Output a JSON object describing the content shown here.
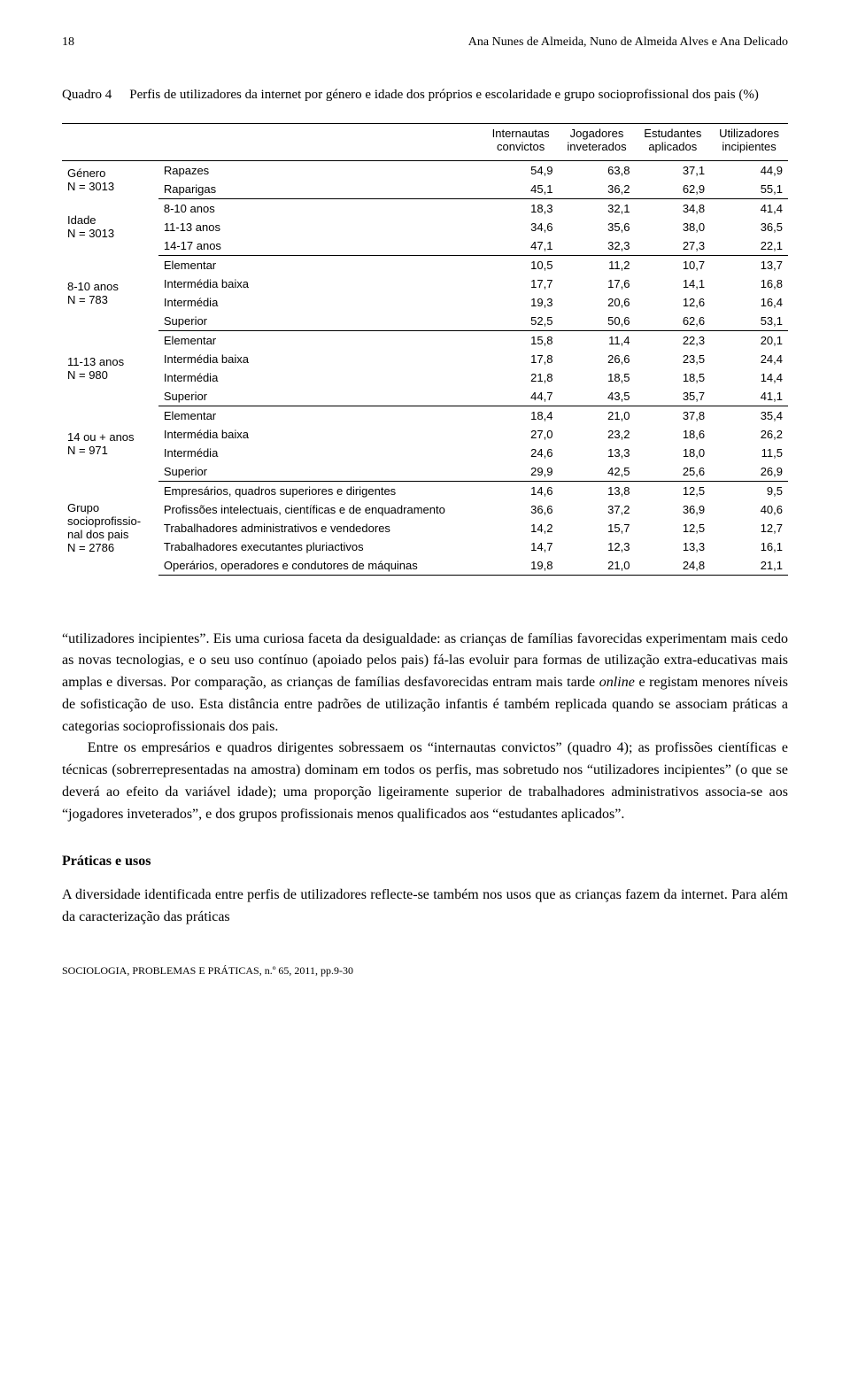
{
  "page_number": "18",
  "authors_line": "Ana Nunes de Almeida, Nuno de Almeida Alves e Ana Delicado",
  "table": {
    "caption_label": "Quadro 4",
    "caption_text": "Perfis de utilizadores da internet por género e idade dos próprios e escolaridade e grupo socioprofissional dos pais (%)",
    "columns": [
      {
        "l1": "Internautas",
        "l2": "convictos"
      },
      {
        "l1": "Jogadores",
        "l2": "inveterados"
      },
      {
        "l1": "Estudantes",
        "l2": "aplicados"
      },
      {
        "l1": "Utilizadores",
        "l2": "incipientes"
      }
    ],
    "groups": [
      {
        "label_lines": [
          "Género",
          "N = 3013"
        ],
        "rows": [
          {
            "label": "Rapazes",
            "vals": [
              "54,9",
              "63,8",
              "37,1",
              "44,9"
            ]
          },
          {
            "label": "Raparigas",
            "vals": [
              "45,1",
              "36,2",
              "62,9",
              "55,1"
            ]
          }
        ]
      },
      {
        "label_lines": [
          "Idade",
          "N = 3013"
        ],
        "rows": [
          {
            "label": "8-10 anos",
            "vals": [
              "18,3",
              "32,1",
              "34,8",
              "41,4"
            ]
          },
          {
            "label": "11-13 anos",
            "vals": [
              "34,6",
              "35,6",
              "38,0",
              "36,5"
            ]
          },
          {
            "label": "14-17 anos",
            "vals": [
              "47,1",
              "32,3",
              "27,3",
              "22,1"
            ]
          }
        ]
      },
      {
        "label_lines": [
          "8-10 anos",
          "N = 783"
        ],
        "rows": [
          {
            "label": "Elementar",
            "vals": [
              "10,5",
              "11,2",
              "10,7",
              "13,7"
            ]
          },
          {
            "label": "Intermédia baixa",
            "vals": [
              "17,7",
              "17,6",
              "14,1",
              "16,8"
            ]
          },
          {
            "label": "Intermédia",
            "vals": [
              "19,3",
              "20,6",
              "12,6",
              "16,4"
            ]
          },
          {
            "label": "Superior",
            "vals": [
              "52,5",
              "50,6",
              "62,6",
              "53,1"
            ]
          }
        ]
      },
      {
        "label_lines": [
          "11-13 anos",
          "N = 980"
        ],
        "rows": [
          {
            "label": "Elementar",
            "vals": [
              "15,8",
              "11,4",
              "22,3",
              "20,1"
            ]
          },
          {
            "label": "Intermédia baixa",
            "vals": [
              "17,8",
              "26,6",
              "23,5",
              "24,4"
            ]
          },
          {
            "label": "Intermédia",
            "vals": [
              "21,8",
              "18,5",
              "18,5",
              "14,4"
            ]
          },
          {
            "label": "Superior",
            "vals": [
              "44,7",
              "43,5",
              "35,7",
              "41,1"
            ]
          }
        ]
      },
      {
        "label_lines": [
          "14 ou + anos",
          "N = 971"
        ],
        "rows": [
          {
            "label": "Elementar",
            "vals": [
              "18,4",
              "21,0",
              "37,8",
              "35,4"
            ]
          },
          {
            "label": "Intermédia baixa",
            "vals": [
              "27,0",
              "23,2",
              "18,6",
              "26,2"
            ]
          },
          {
            "label": "Intermédia",
            "vals": [
              "24,6",
              "13,3",
              "18,0",
              "11,5"
            ]
          },
          {
            "label": "Superior",
            "vals": [
              "29,9",
              "42,5",
              "25,6",
              "26,9"
            ]
          }
        ]
      },
      {
        "label_lines": [
          "Grupo",
          "socioprofissio-",
          "nal dos pais",
          "N = 2786"
        ],
        "rows": [
          {
            "label": "Empresários, quadros superiores e dirigentes",
            "vals": [
              "14,6",
              "13,8",
              "12,5",
              "9,5"
            ]
          },
          {
            "label": "Profissões intelectuais, científicas e de enquadramento",
            "vals": [
              "36,6",
              "37,2",
              "36,9",
              "40,6"
            ]
          },
          {
            "label": "Trabalhadores administrativos e vendedores",
            "vals": [
              "14,2",
              "15,7",
              "12,5",
              "12,7"
            ]
          },
          {
            "label": "Trabalhadores executantes pluriactivos",
            "vals": [
              "14,7",
              "12,3",
              "13,3",
              "16,1"
            ]
          },
          {
            "label": "Operários, operadores e condutores de máquinas",
            "vals": [
              "19,8",
              "21,0",
              "24,8",
              "21,1"
            ]
          }
        ]
      }
    ]
  },
  "body": {
    "p1": "“utilizadores incipientes”. Eis uma curiosa faceta da desigualdade: as crianças de famílias favorecidas experimentam mais cedo as novas tecnologias, e o seu uso contínuo (apoiado pelos pais) fá-las evoluir para formas de utilização extra-educativas mais amplas e diversas. Por comparação, as crianças de famílias desfavorecidas entram mais tarde ",
    "p1_em": "online",
    "p1_tail": " e registam menores níveis de sofisticação de uso. Esta distância entre padrões de utilização infantis é também replicada quando se associam práticas a categorias socioprofissionais dos pais.",
    "p2": "Entre os empresários e quadros dirigentes sobressaem os “internautas convictos” (quadro 4); as profissões científicas e técnicas (sobrerrepresentadas na amostra) dominam em todos os perfis, mas sobretudo nos “utilizadores incipientes” (o que se deverá ao efeito da variável idade); uma proporção ligeiramente superior de trabalhadores administrativos associa-se aos “jogadores inveterados”, e dos grupos profissionais menos qualificados aos “estudantes aplicados”.",
    "section_head": "Práticas e usos",
    "p3": "A diversidade identificada entre perfis de utilizadores reflecte-se também nos usos que as crianças fazem da internet. Para além da caracterização das práticas"
  },
  "footer": "SOCIOLOGIA, PROBLEMAS E PRÁTICAS, n.º 65, 2011, pp.9-30"
}
